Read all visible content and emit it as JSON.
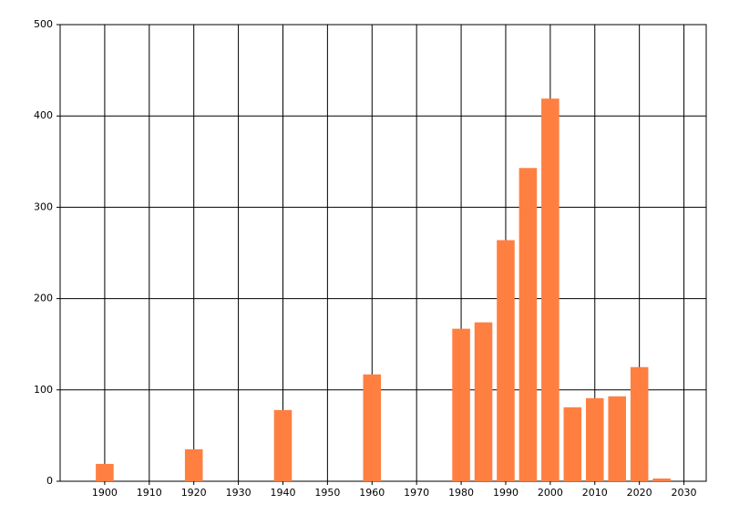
{
  "chart_data": {
    "type": "bar",
    "x": [
      1900,
      1920,
      1940,
      1960,
      1980,
      1985,
      1990,
      1995,
      2000,
      2005,
      2010,
      2015,
      2020,
      2025
    ],
    "values": [
      19,
      35,
      78,
      117,
      167,
      174,
      264,
      343,
      419,
      81,
      91,
      93,
      125,
      3
    ],
    "color": "#ff7f41",
    "xlim": [
      1890,
      2035
    ],
    "xticks": [
      1900,
      1910,
      1920,
      1930,
      1940,
      1950,
      1960,
      1970,
      1980,
      1990,
      2000,
      2010,
      2020,
      2030
    ],
    "ylim": [
      0,
      500
    ],
    "yticks": [
      0,
      100,
      200,
      300,
      400,
      500
    ],
    "grid": true
  }
}
